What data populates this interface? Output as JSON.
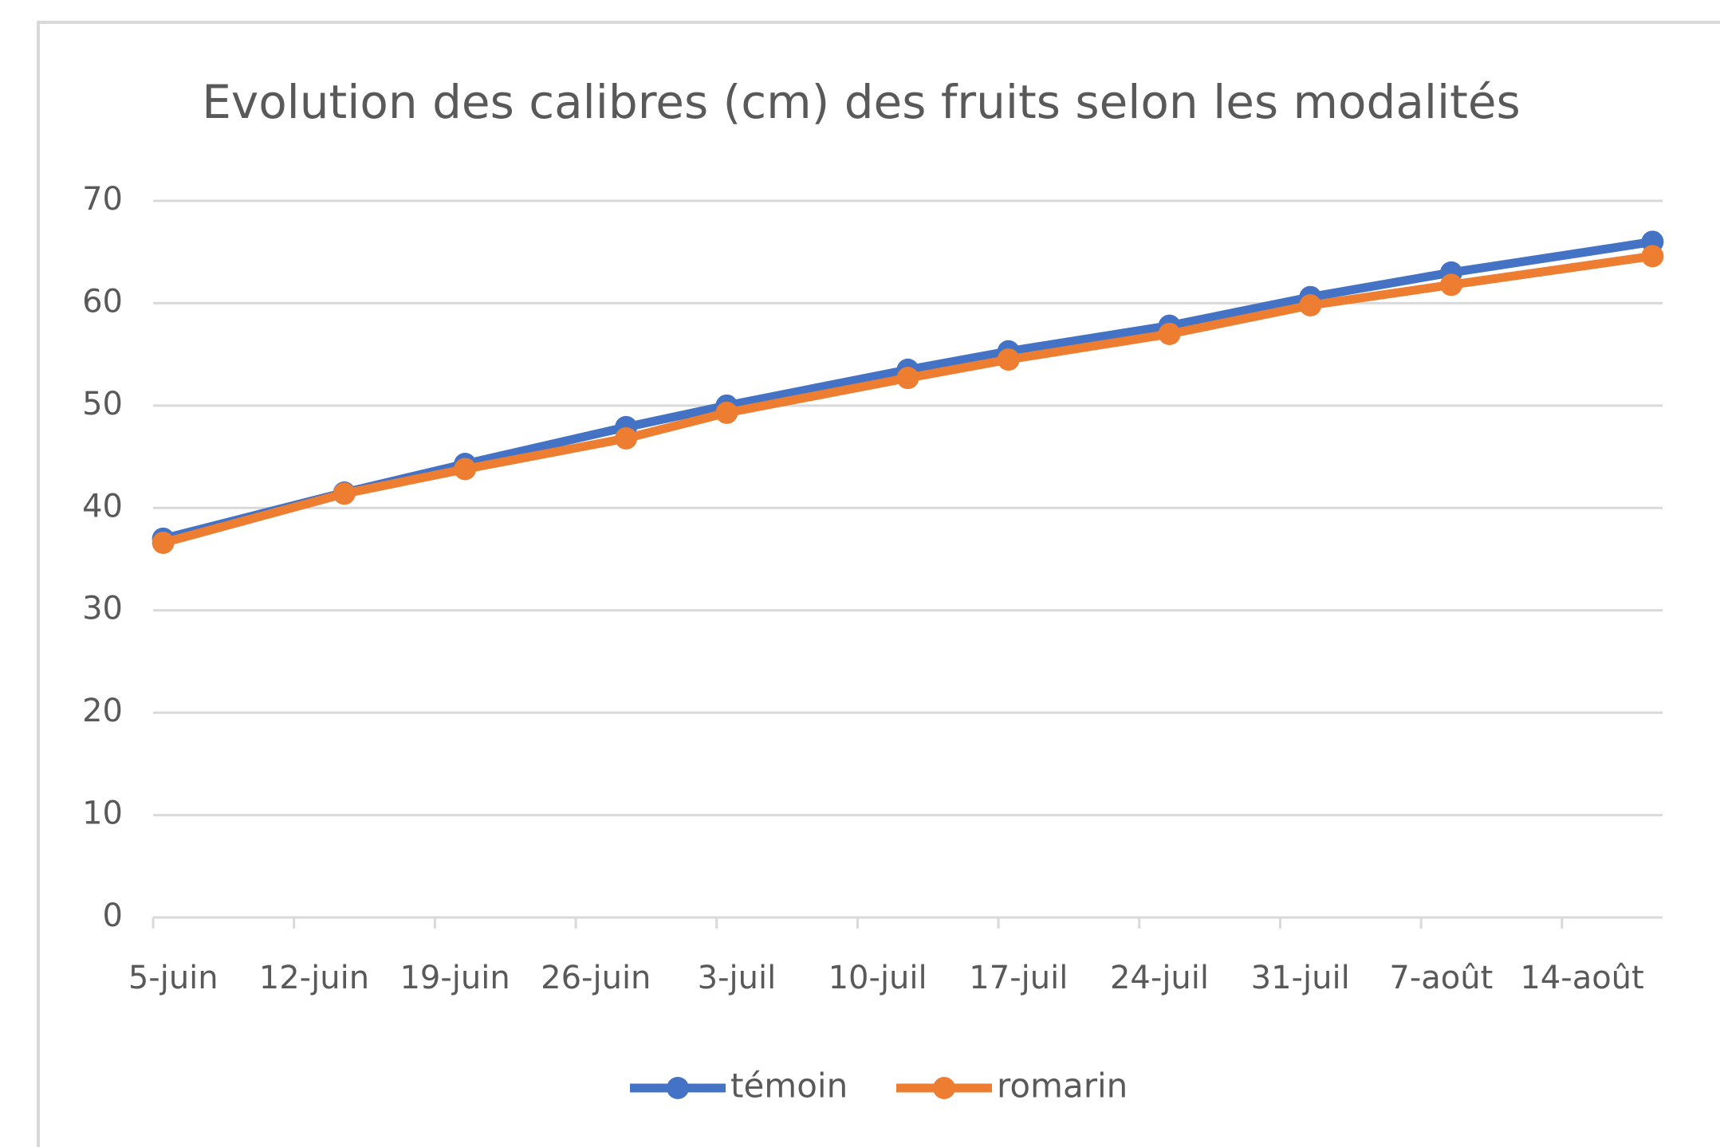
{
  "chart_data": {
    "type": "line",
    "title": "Evolution des calibres (cm) des fruits selon les modalités",
    "x": [
      "06-05",
      "06-14",
      "06-20",
      "06-28",
      "07-03",
      "07-12",
      "07-17",
      "07-25",
      "08-01",
      "08-08",
      "08-18"
    ],
    "series": [
      {
        "name": "témoin",
        "color": "#4472c4",
        "values": [
          37,
          41.5,
          44.3,
          47.9,
          50,
          53.5,
          55.3,
          57.8,
          60.6,
          63,
          66
        ]
      },
      {
        "name": "romarin",
        "color": "#ed7d31",
        "values": [
          36.6,
          41.4,
          43.8,
          46.8,
          49.3,
          52.7,
          54.5,
          57,
          59.8,
          61.8,
          64.6
        ]
      }
    ],
    "xlim": [
      "06-05",
      "08-19"
    ],
    "xticks": [
      {
        "value": "06-05",
        "label": "5-juin"
      },
      {
        "value": "06-12",
        "label": "12-juin"
      },
      {
        "value": "06-19",
        "label": "19-juin"
      },
      {
        "value": "06-26",
        "label": "26-juin"
      },
      {
        "value": "07-03",
        "label": "3-juil"
      },
      {
        "value": "07-10",
        "label": "10-juil"
      },
      {
        "value": "07-17",
        "label": "17-juil"
      },
      {
        "value": "07-24",
        "label": "24-juil"
      },
      {
        "value": "07-31",
        "label": "31-juil"
      },
      {
        "value": "08-07",
        "label": "7-août"
      },
      {
        "value": "08-14",
        "label": "14-août"
      }
    ],
    "ylim": [
      0,
      70
    ],
    "yticks": [
      0,
      10,
      20,
      30,
      40,
      50,
      60,
      70
    ],
    "grid": true,
    "legend": "bottom"
  }
}
